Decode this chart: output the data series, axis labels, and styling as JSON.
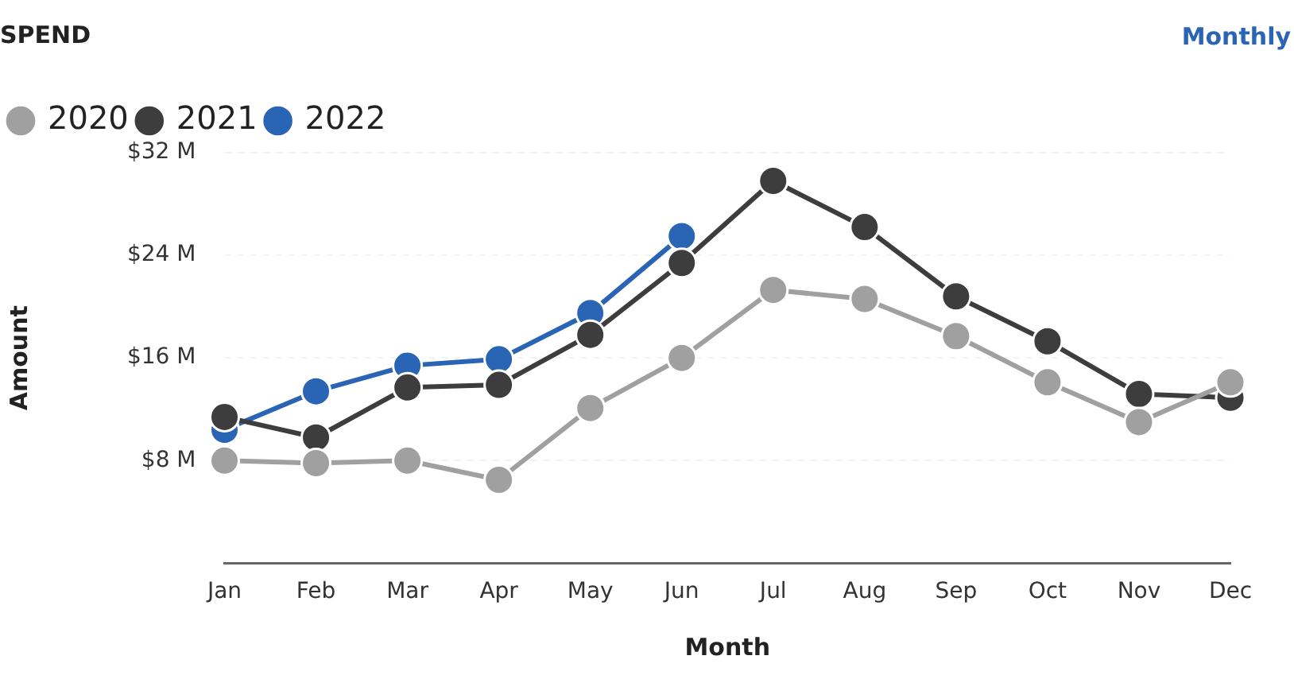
{
  "chart_data": {
    "type": "line",
    "title": "SPEND",
    "annotations": [
      "Monthly"
    ],
    "xlabel": "Month",
    "ylabel": "Amount",
    "categories": [
      "Jan",
      "Feb",
      "Mar",
      "Apr",
      "May",
      "Jun",
      "Jul",
      "Aug",
      "Sep",
      "Oct",
      "Nov",
      "Dec"
    ],
    "series": [
      {
        "name": "2020",
        "color": "#a0a0a0",
        "values": [
          8.0,
          7.8,
          8.0,
          6.5,
          12.1,
          16.0,
          21.3,
          20.6,
          17.7,
          14.1,
          11.0,
          14.1
        ]
      },
      {
        "name": "2021",
        "color": "#3d3d3d",
        "values": [
          11.4,
          9.8,
          13.7,
          13.9,
          17.8,
          23.4,
          29.8,
          26.2,
          20.8,
          17.3,
          13.2,
          12.9
        ]
      },
      {
        "name": "2022",
        "color": "#2a64b4",
        "values": [
          10.4,
          13.4,
          15.4,
          15.9,
          19.5,
          25.5,
          null,
          null,
          null,
          null,
          null,
          null
        ]
      }
    ],
    "ylim": [
      0,
      32
    ],
    "yticks": [
      {
        "value": 8,
        "label": "$8 M"
      },
      {
        "value": 16,
        "label": "$16 M"
      },
      {
        "value": 24,
        "label": "$24 M"
      },
      {
        "value": 32,
        "label": "$32 M"
      }
    ],
    "grid": "y",
    "legend": "top left",
    "marker": "circle"
  }
}
